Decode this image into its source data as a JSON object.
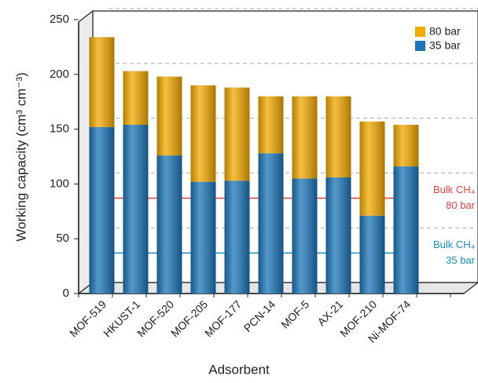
{
  "chart_data": {
    "type": "stacked_bar",
    "x_label": "Adsorbent",
    "y_label": "Working capacity (cm³ cm⁻³)",
    "categories": [
      "MOF-519",
      "HKUST-1",
      "MOF-520",
      "MOF-205",
      "MOF-177",
      "PCN-14",
      "MOF-5",
      "AX-21",
      "MOF-210",
      "Ni-MOF-74"
    ],
    "series": [
      {
        "name": "35 bar",
        "color": "#1b76b9",
        "values": [
          152,
          154,
          126,
          102,
          103,
          128,
          105,
          106,
          71,
          116
        ]
      },
      {
        "name": "80 bar",
        "color": "#f2a900",
        "values": [
          82,
          49,
          72,
          88,
          85,
          52,
          75,
          74,
          86,
          38
        ]
      }
    ],
    "reference_lines": [
      {
        "label_lines": [
          "Bulk CH₄",
          "80 bar"
        ],
        "value": 87,
        "color": "#e0443e"
      },
      {
        "label_lines": [
          "Bulk CH₄",
          "35 bar"
        ],
        "value": 37,
        "color": "#1a8fc0"
      }
    ],
    "ylim": [
      0,
      250
    ],
    "yticks": [
      0,
      50,
      100,
      150,
      200,
      250
    ],
    "grid": true,
    "legend": "upper right"
  }
}
